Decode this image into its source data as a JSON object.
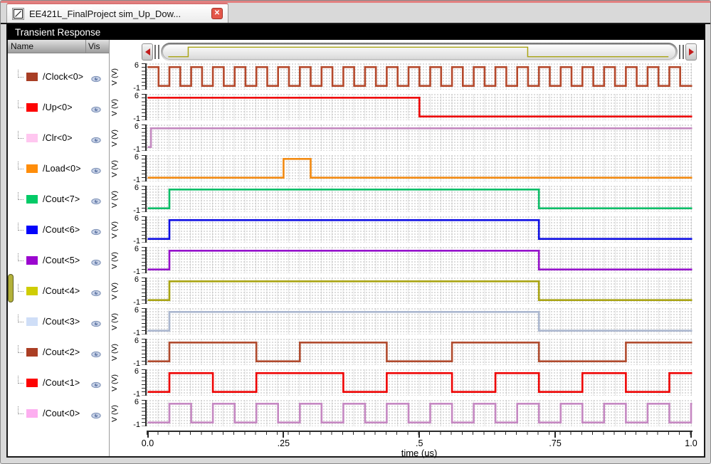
{
  "tab": {
    "title": "EE421L_FinalProject sim_Up_Dow...",
    "close_glyph": "✕"
  },
  "header": {
    "title": "Transient Response"
  },
  "panel": {
    "name_header": "Name",
    "vis_header": "Vis"
  },
  "axis": {
    "ylabel": "V (V)",
    "ymax": "6",
    "ymin": "-1",
    "xlabel": "time (us)",
    "xticks": [
      {
        "t": 0.0,
        "label": "0.0"
      },
      {
        "t": 0.25,
        "label": ".25"
      },
      {
        "t": 0.5,
        "label": ".5"
      },
      {
        "t": 0.75,
        "label": ".75"
      },
      {
        "t": 1.0,
        "label": "1.0"
      }
    ]
  },
  "icons": {
    "tab": "diagonal-plot-icon",
    "close": "close-icon",
    "visibility": "eye-icon",
    "scroll_left": "left-arrow-icon",
    "scroll_right": "right-arrow-icon"
  },
  "scrollbar": {
    "preview_signal": "/Cout<4>"
  },
  "chart_data": {
    "type": "line",
    "title": "Transient Response",
    "xlabel": "time (us)",
    "xlim": [
      0.0,
      1.0
    ],
    "ylabel": "V (V)",
    "ylim": [
      -1,
      6
    ],
    "high_v": 5,
    "low_v": 0,
    "signals": [
      {
        "name": "/Clock<0>",
        "color": "#b5492c",
        "swatch": "#a83e25",
        "visible": true,
        "high_intervals": [
          [
            0,
            0.02
          ],
          [
            0.04,
            0.06
          ],
          [
            0.08,
            0.1
          ],
          [
            0.12,
            0.14
          ],
          [
            0.16,
            0.18
          ],
          [
            0.2,
            0.22
          ],
          [
            0.24,
            0.26
          ],
          [
            0.28,
            0.3
          ],
          [
            0.32,
            0.34
          ],
          [
            0.36,
            0.38
          ],
          [
            0.4,
            0.42
          ],
          [
            0.44,
            0.46
          ],
          [
            0.48,
            0.5
          ],
          [
            0.52,
            0.54
          ],
          [
            0.56,
            0.58
          ],
          [
            0.6,
            0.62
          ],
          [
            0.64,
            0.66
          ],
          [
            0.68,
            0.7
          ],
          [
            0.72,
            0.74
          ],
          [
            0.76,
            0.78
          ],
          [
            0.8,
            0.82
          ],
          [
            0.84,
            0.86
          ],
          [
            0.88,
            0.9
          ],
          [
            0.92,
            0.94
          ],
          [
            0.96,
            0.98
          ]
        ]
      },
      {
        "name": "/Up<0>",
        "color": "#ee0404",
        "swatch": "#fd0303",
        "visible": true,
        "high_intervals": [
          [
            0,
            0.5
          ]
        ]
      },
      {
        "name": "/Clr<0>",
        "color": "#c489c0",
        "swatch": "#ffc7f0",
        "visible": true,
        "high_intervals": [
          [
            0.006,
            1.02
          ]
        ]
      },
      {
        "name": "/Load<0>",
        "color": "#f28a12",
        "swatch": "#ff8d0a",
        "visible": true,
        "high_intervals": [
          [
            0.25,
            0.3
          ]
        ]
      },
      {
        "name": "/Cout<7>",
        "color": "#0dbd68",
        "swatch": "#03ca67",
        "visible": true,
        "high_intervals": [
          [
            0.04,
            0.72
          ]
        ]
      },
      {
        "name": "/Cout<6>",
        "color": "#0f0fe3",
        "swatch": "#0404fb",
        "visible": true,
        "high_intervals": [
          [
            0.04,
            0.72
          ]
        ]
      },
      {
        "name": "/Cout<5>",
        "color": "#9513cb",
        "swatch": "#9b06cf",
        "visible": true,
        "high_intervals": [
          [
            0.04,
            0.72
          ]
        ]
      },
      {
        "name": "/Cout<4>",
        "color": "#a9a413",
        "swatch": "#cfcd04",
        "visible": true,
        "high_intervals": [
          [
            0.04,
            0.72
          ]
        ]
      },
      {
        "name": "/Cout<3>",
        "color": "#abb7cf",
        "swatch": "#cfdef7",
        "visible": true,
        "high_intervals": [
          [
            0.04,
            0.72
          ]
        ]
      },
      {
        "name": "/Cout<2>",
        "color": "#b04b2e",
        "swatch": "#ab3e24",
        "visible": true,
        "high_intervals": [
          [
            0.04,
            0.2
          ],
          [
            0.28,
            0.44
          ],
          [
            0.56,
            0.72
          ],
          [
            0.88,
            1.02
          ]
        ]
      },
      {
        "name": "/Cout<1>",
        "color": "#ee0404",
        "swatch": "#fd0303",
        "visible": true,
        "high_intervals": [
          [
            0.04,
            0.12
          ],
          [
            0.2,
            0.36
          ],
          [
            0.44,
            0.56
          ],
          [
            0.64,
            0.72
          ],
          [
            0.8,
            0.88
          ],
          [
            0.96,
            1.02
          ]
        ]
      },
      {
        "name": "/Cout<0>",
        "color": "#c588c2",
        "swatch": "#fdaef0",
        "visible": true,
        "high_intervals": [
          [
            0.04,
            0.08
          ],
          [
            0.12,
            0.16
          ],
          [
            0.2,
            0.24
          ],
          [
            0.28,
            0.32
          ],
          [
            0.36,
            0.4
          ],
          [
            0.44,
            0.48
          ],
          [
            0.52,
            0.56
          ],
          [
            0.6,
            0.64
          ],
          [
            0.68,
            0.72
          ],
          [
            0.76,
            0.8
          ],
          [
            0.84,
            0.88
          ],
          [
            0.92,
            0.96
          ],
          [
            1.0,
            1.02
          ]
        ]
      }
    ]
  }
}
